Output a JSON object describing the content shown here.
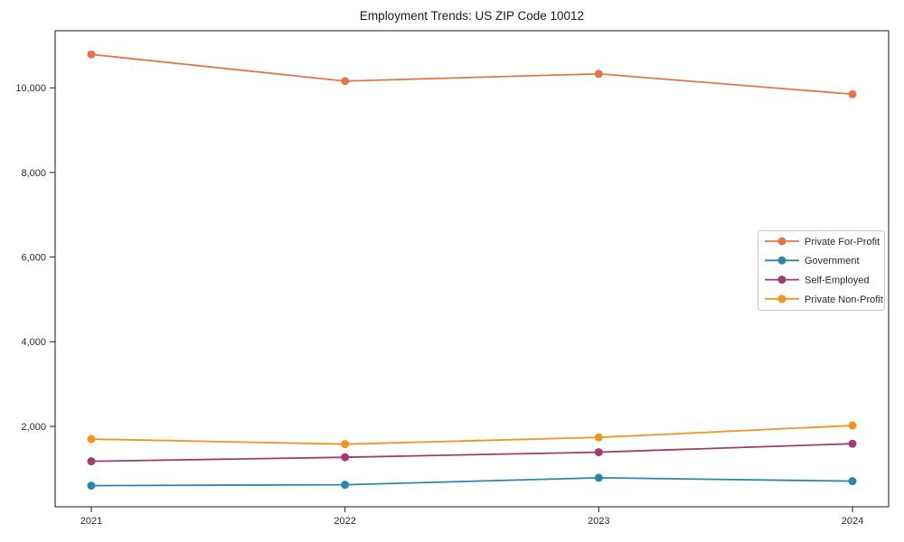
{
  "chart_data": {
    "type": "line",
    "title": "Employment Trends: US ZIP Code 10012",
    "categories": [
      "2021",
      "2022",
      "2023",
      "2024"
    ],
    "series": [
      {
        "name": "Private For-Profit",
        "color": "#E0764B",
        "values": [
          10790,
          10160,
          10330,
          9850
        ]
      },
      {
        "name": "Government",
        "color": "#2E86AB",
        "values": [
          600,
          620,
          785,
          705
        ]
      },
      {
        "name": "Self-Employed",
        "color": "#A23B72",
        "values": [
          1175,
          1270,
          1390,
          1590
        ]
      },
      {
        "name": "Private Non-Profit",
        "color": "#F0941E",
        "values": [
          1700,
          1580,
          1740,
          2020
        ]
      }
    ],
    "xlabel": "",
    "ylabel": "",
    "ylim": [
      100,
      11350
    ],
    "yticks": [
      2000,
      4000,
      6000,
      8000,
      10000
    ],
    "ytick_labels": [
      "2,000",
      "4,000",
      "6,000",
      "8,000",
      "10,000"
    ],
    "grid": false,
    "legend_position": "center right",
    "marker": "circle",
    "axis_color": "#1a1a1a",
    "tick_label_color": "#2b2b2b",
    "legend_border_color": "#c8c8c8",
    "background_color": "#ffffff"
  }
}
